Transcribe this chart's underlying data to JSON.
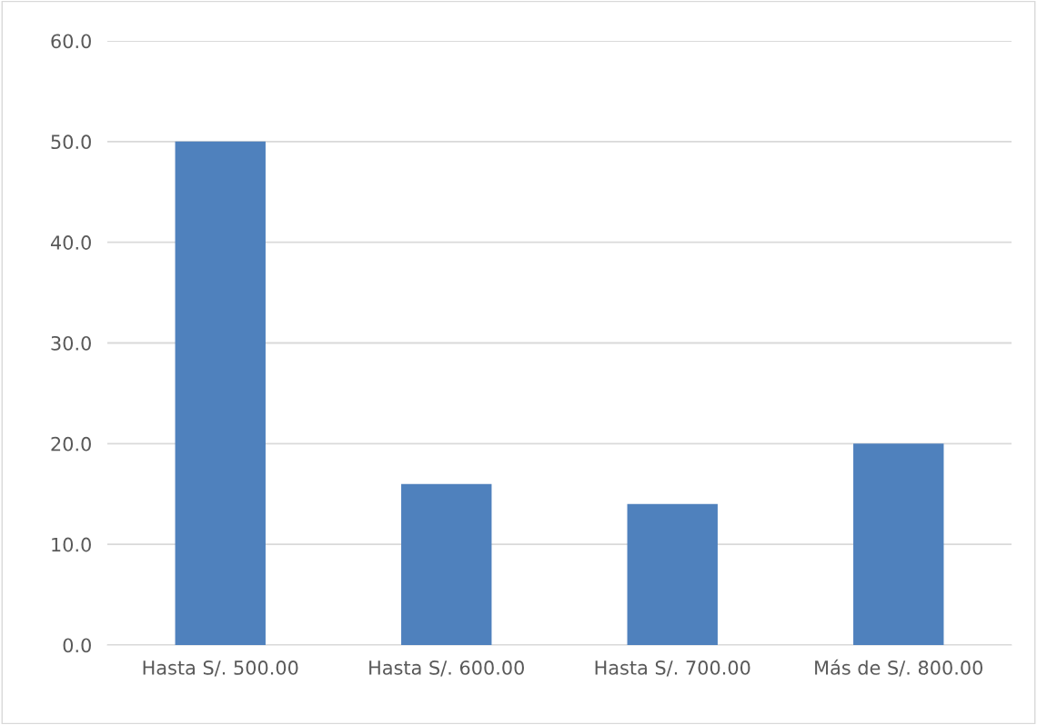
{
  "chart_data": {
    "type": "bar",
    "categories": [
      "Hasta S/. 500.00",
      "Hasta S/. 600.00",
      "Hasta S/. 700.00",
      "Más de S/. 800.00"
    ],
    "values": [
      50,
      16,
      14,
      20
    ],
    "color": "#4f81bd",
    "ylim": [
      0,
      60
    ],
    "yticks": [
      {
        "value": 0,
        "label": "0.0"
      },
      {
        "value": 10,
        "label": "10.0"
      },
      {
        "value": 20,
        "label": "20.0"
      },
      {
        "value": 30,
        "label": "30.0"
      },
      {
        "value": 40,
        "label": "40.0"
      },
      {
        "value": 50,
        "label": "50.0"
      },
      {
        "value": 60,
        "label": "60.0"
      }
    ],
    "grid": "y",
    "legend": false
  }
}
